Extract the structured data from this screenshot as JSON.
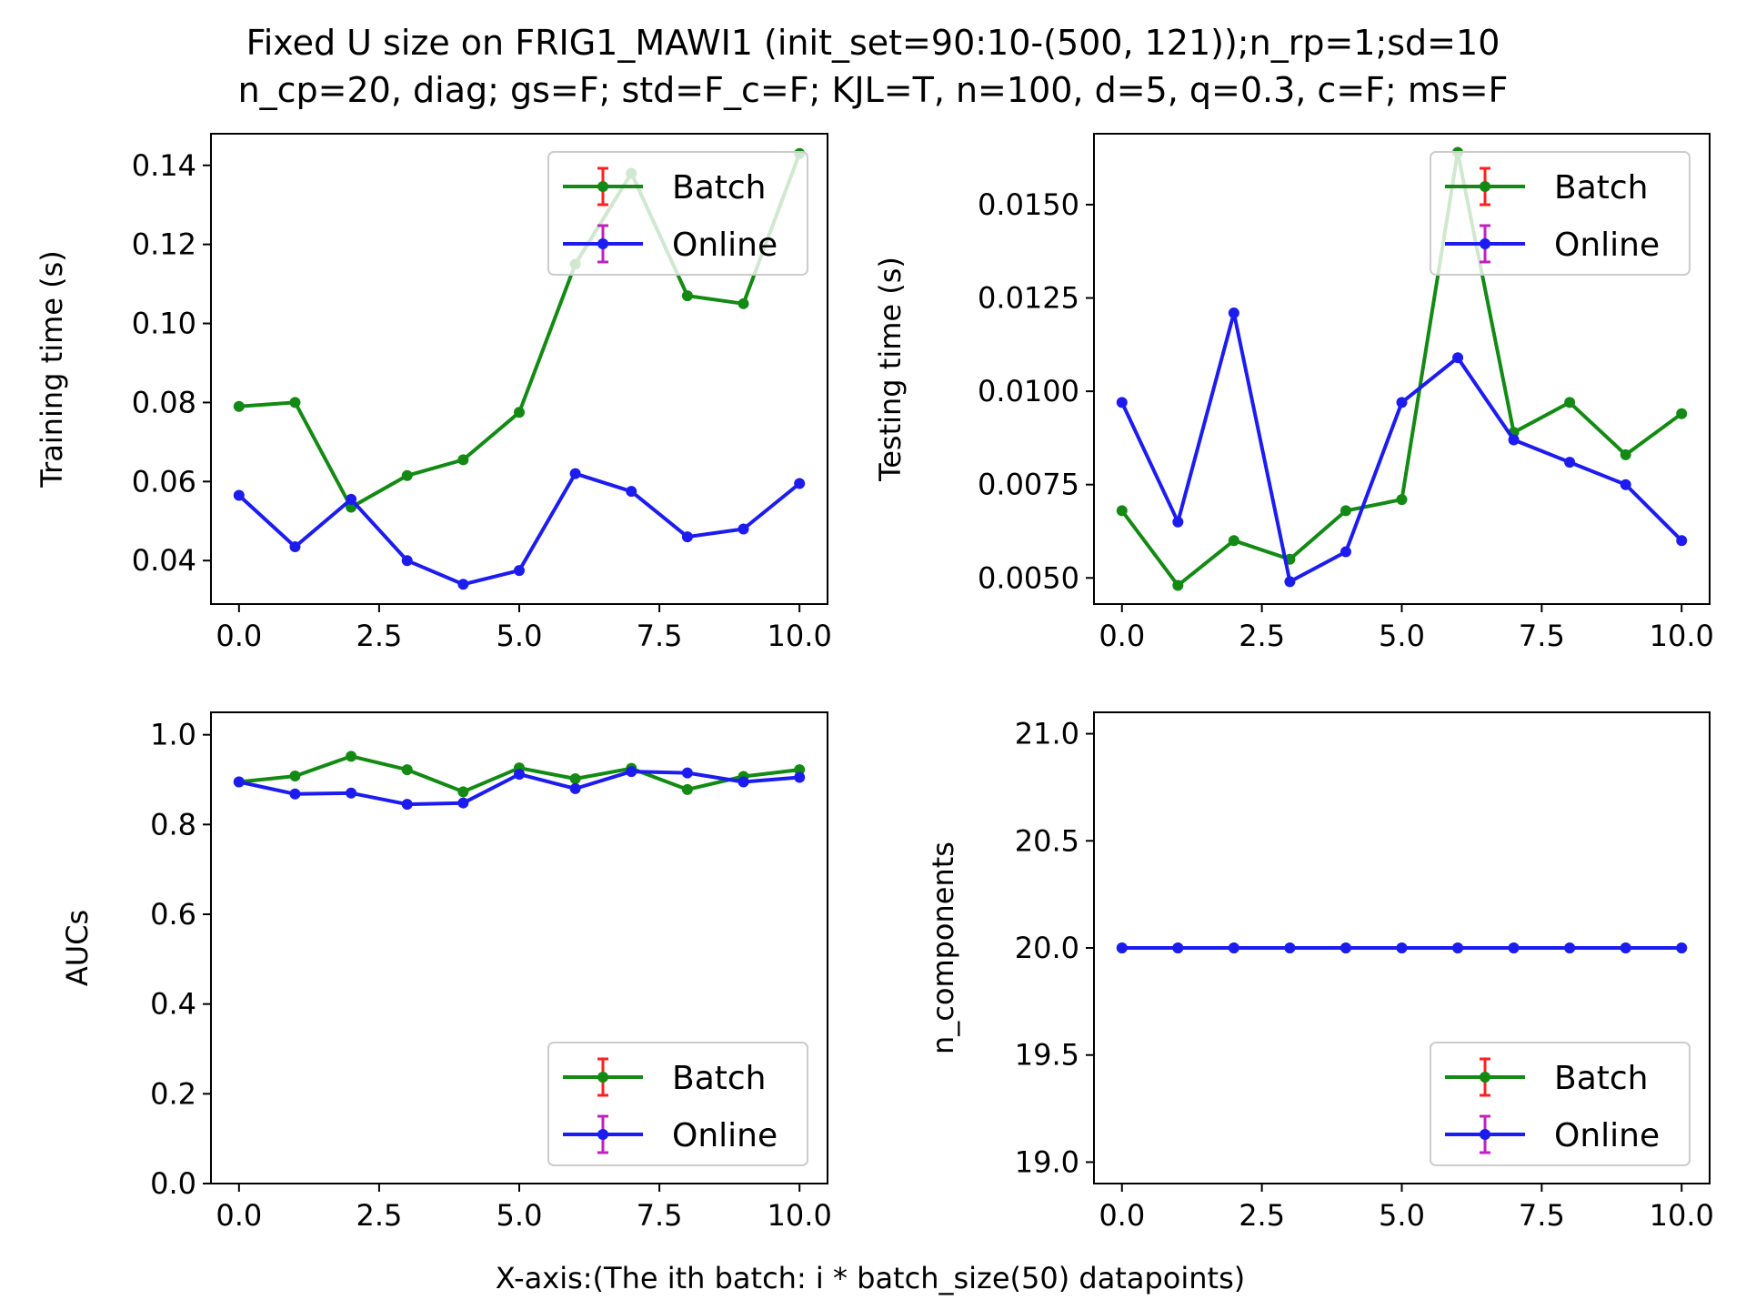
{
  "figure": {
    "title_line1": "Fixed U size on FRIG1_MAWI1 (init_set=90:10-(500, 121));n_rp=1;sd=10",
    "title_line2": "n_cp=20, diag; gs=F; std=F_c=F; KJL=T, n=100, d=5, q=0.3, c=F; ms=F",
    "xlabel": "X-axis:(The ith batch: i * batch_size(50) datapoints)"
  },
  "colors": {
    "batch": "#138a13",
    "online": "#1c1cf0",
    "batch_err": "#ff2020",
    "online_err": "#c020c0"
  },
  "chart_data": [
    {
      "type": "line",
      "ylabel": "Training time (s)",
      "x": [
        0,
        1,
        2,
        3,
        4,
        5,
        6,
        7,
        8,
        9,
        10
      ],
      "xlim": [
        -0.5,
        10.5
      ],
      "ylim": [
        0.029,
        0.148
      ],
      "xticks": [
        0.0,
        2.5,
        5.0,
        7.5,
        10.0
      ],
      "xtick_labels": [
        "0.0",
        "2.5",
        "5.0",
        "7.5",
        "10.0"
      ],
      "yticks": [
        0.04,
        0.06,
        0.08,
        0.1,
        0.12,
        0.14
      ],
      "ytick_labels": [
        "0.04",
        "0.06",
        "0.08",
        "0.10",
        "0.12",
        "0.14"
      ],
      "legend": "upper right",
      "series": [
        {
          "name": "Batch",
          "color": "#138a13",
          "values": [
            0.079,
            0.08,
            0.0535,
            0.0615,
            0.0655,
            0.0775,
            0.115,
            0.138,
            0.107,
            0.105,
            0.143
          ]
        },
        {
          "name": "Online",
          "color": "#1c1cf0",
          "values": [
            0.0565,
            0.0435,
            0.0555,
            0.04,
            0.034,
            0.0375,
            0.062,
            0.0575,
            0.046,
            0.048,
            0.0595
          ]
        }
      ]
    },
    {
      "type": "line",
      "ylabel": "Testing time (s)",
      "x": [
        0,
        1,
        2,
        3,
        4,
        5,
        6,
        7,
        8,
        9,
        10
      ],
      "xlim": [
        -0.5,
        10.5
      ],
      "ylim": [
        0.0043,
        0.0169
      ],
      "xticks": [
        0.0,
        2.5,
        5.0,
        7.5,
        10.0
      ],
      "xtick_labels": [
        "0.0",
        "2.5",
        "5.0",
        "7.5",
        "10.0"
      ],
      "yticks": [
        0.005,
        0.0075,
        0.01,
        0.0125,
        0.015
      ],
      "ytick_labels": [
        "0.0050",
        "0.0075",
        "0.0100",
        "0.0125",
        "0.0150"
      ],
      "legend": "upper right",
      "series": [
        {
          "name": "Batch",
          "color": "#138a13",
          "values": [
            0.0068,
            0.0048,
            0.006,
            0.0055,
            0.0068,
            0.0071,
            0.0164,
            0.0089,
            0.0097,
            0.0083,
            0.0094
          ]
        },
        {
          "name": "Online",
          "color": "#1c1cf0",
          "values": [
            0.0097,
            0.0065,
            0.0121,
            0.0049,
            0.0057,
            0.0097,
            0.0109,
            0.0087,
            0.0081,
            0.0075,
            0.006
          ]
        }
      ]
    },
    {
      "type": "line",
      "ylabel": "AUCs",
      "x": [
        0,
        1,
        2,
        3,
        4,
        5,
        6,
        7,
        8,
        9,
        10
      ],
      "xlim": [
        -0.5,
        10.5
      ],
      "ylim": [
        0.0,
        1.05
      ],
      "xticks": [
        0.0,
        2.5,
        5.0,
        7.5,
        10.0
      ],
      "xtick_labels": [
        "0.0",
        "2.5",
        "5.0",
        "7.5",
        "10.0"
      ],
      "yticks": [
        0.0,
        0.2,
        0.4,
        0.6,
        0.8,
        1.0
      ],
      "ytick_labels": [
        "0.0",
        "0.2",
        "0.4",
        "0.6",
        "0.8",
        "1.0"
      ],
      "legend": "lower right",
      "series": [
        {
          "name": "Batch",
          "color": "#138a13",
          "values": [
            0.895,
            0.908,
            0.952,
            0.922,
            0.873,
            0.926,
            0.902,
            0.925,
            0.878,
            0.907,
            0.922
          ]
        },
        {
          "name": "Online",
          "color": "#1c1cf0",
          "values": [
            0.895,
            0.868,
            0.87,
            0.845,
            0.848,
            0.912,
            0.88,
            0.918,
            0.915,
            0.895,
            0.905
          ]
        }
      ]
    },
    {
      "type": "line",
      "ylabel": "n_components",
      "x": [
        0,
        1,
        2,
        3,
        4,
        5,
        6,
        7,
        8,
        9,
        10
      ],
      "xlim": [
        -0.5,
        10.5
      ],
      "ylim": [
        18.9,
        21.1
      ],
      "xticks": [
        0.0,
        2.5,
        5.0,
        7.5,
        10.0
      ],
      "xtick_labels": [
        "0.0",
        "2.5",
        "5.0",
        "7.5",
        "10.0"
      ],
      "yticks": [
        19.0,
        19.5,
        20.0,
        20.5,
        21.0
      ],
      "ytick_labels": [
        "19.0",
        "19.5",
        "20.0",
        "20.5",
        "21.0"
      ],
      "legend": "lower right",
      "series": [
        {
          "name": "Batch",
          "color": "#138a13",
          "values": [
            20,
            20,
            20,
            20,
            20,
            20,
            20,
            20,
            20,
            20,
            20
          ]
        },
        {
          "name": "Online",
          "color": "#1c1cf0",
          "values": [
            20,
            20,
            20,
            20,
            20,
            20,
            20,
            20,
            20,
            20,
            20
          ]
        }
      ]
    }
  ]
}
